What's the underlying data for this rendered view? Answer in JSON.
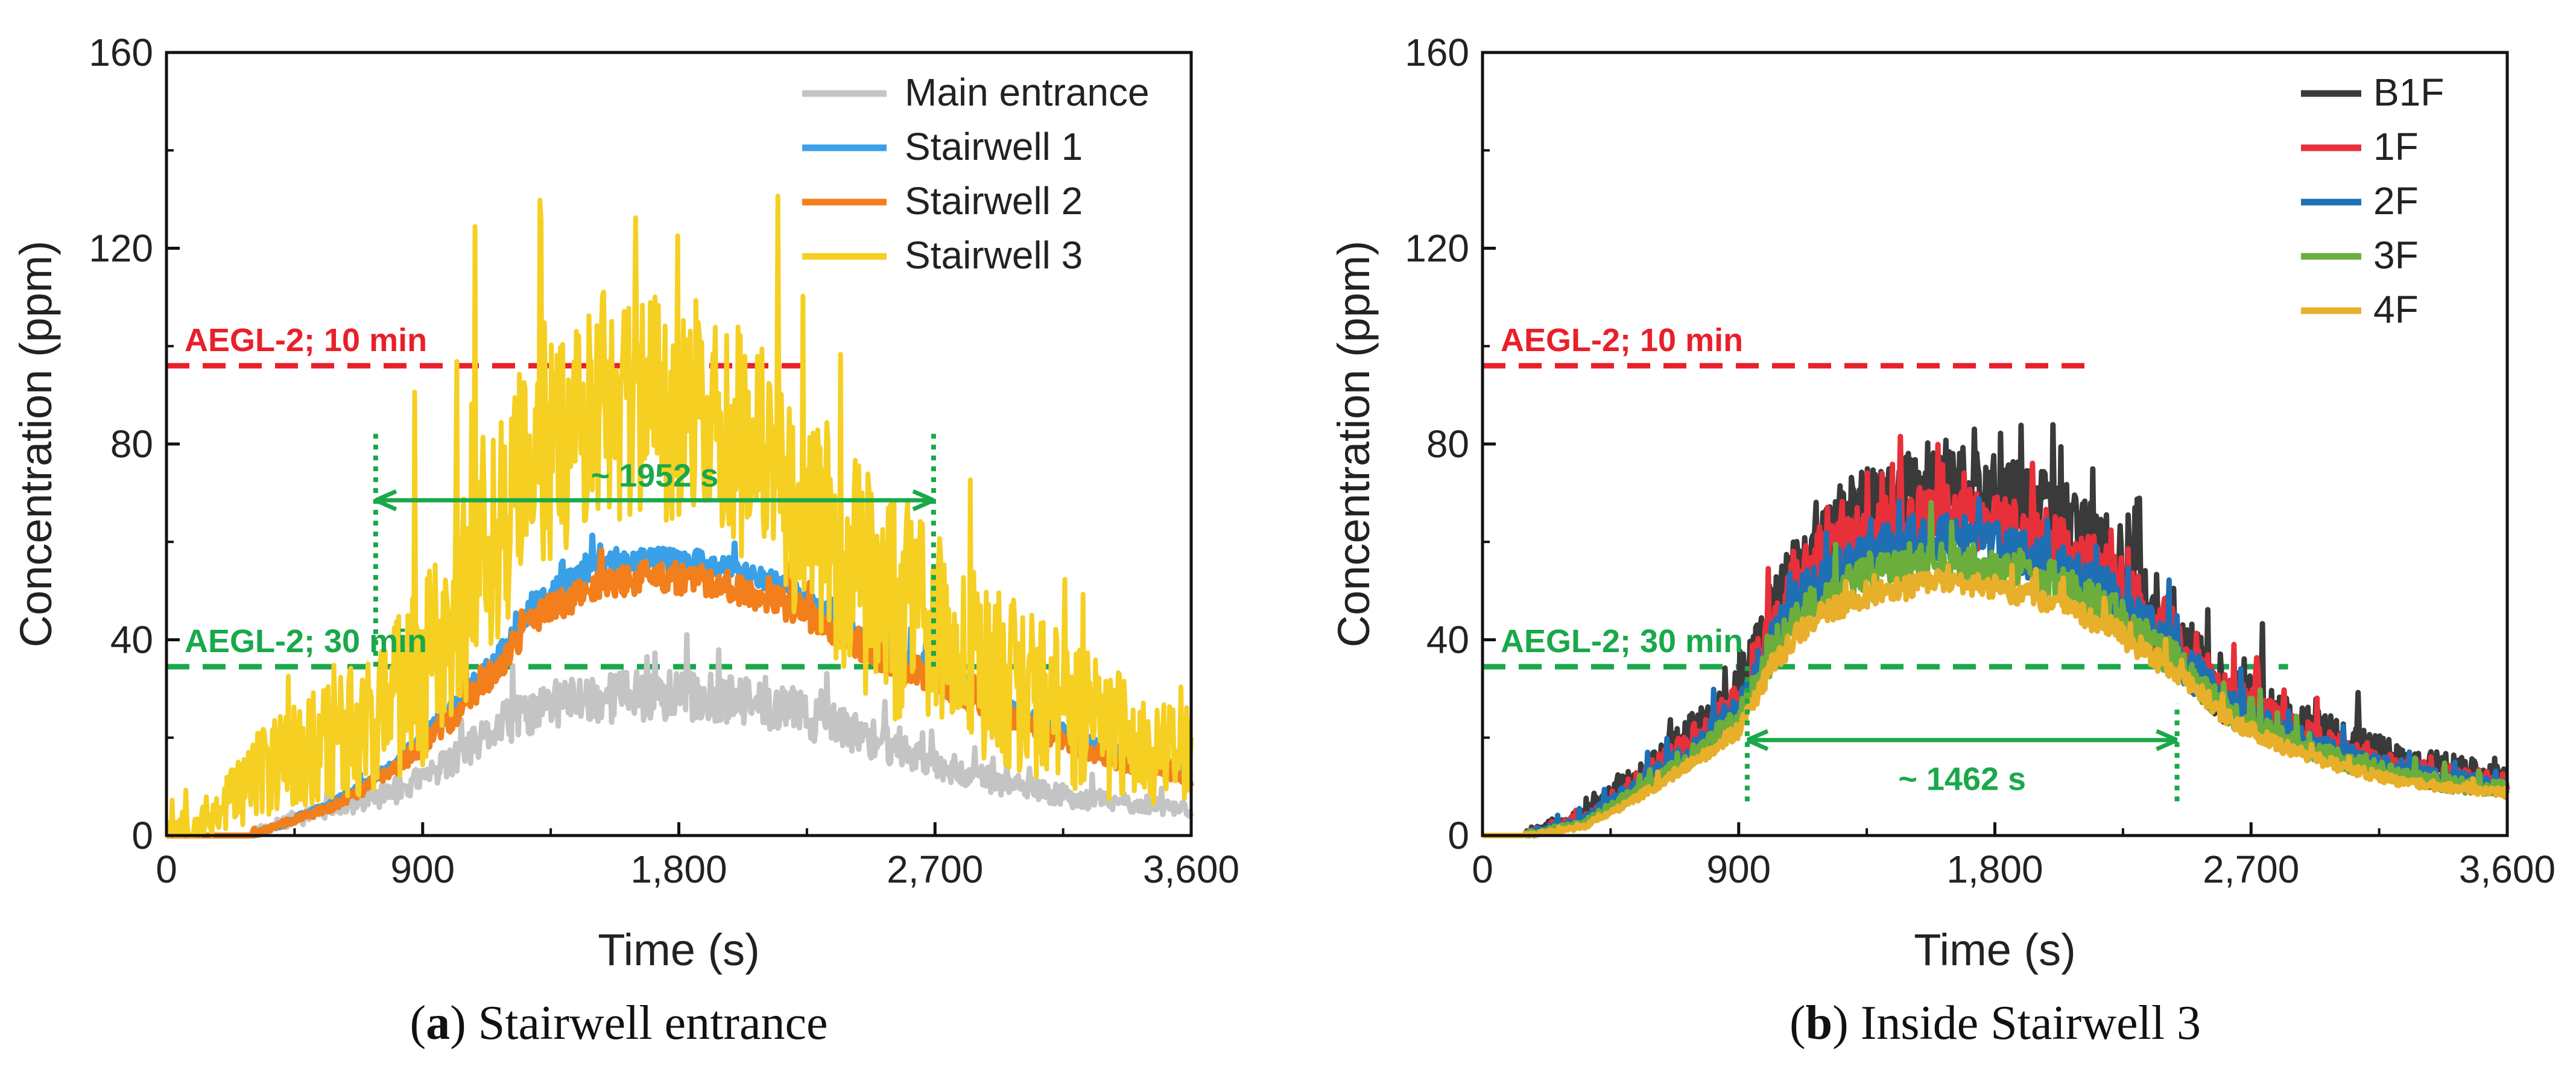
{
  "chart_data": [
    {
      "type": "line",
      "caption_prefix": "(",
      "caption_letter": "a",
      "caption_suffix": ") Stairwell entrance",
      "xlabel": "Time (s)",
      "ylabel": "Concentration (ppm)",
      "xlim": [
        0,
        3600
      ],
      "ylim": [
        0,
        160
      ],
      "xticks": [
        0,
        900,
        1800,
        2700,
        3600
      ],
      "xtick_labels": [
        "0",
        "900",
        "1,800",
        "2,700",
        "3,600"
      ],
      "yticks": [
        0,
        40,
        80,
        120,
        160
      ],
      "ytick_labels": [
        "0",
        "40",
        "80",
        "120",
        "160"
      ],
      "legend_position": "top-right",
      "series": [
        {
          "name": "Main entrance",
          "color": "#c4c4c4",
          "width": 9,
          "noise": 8,
          "seed": 11,
          "x": [
            0,
            300,
            400,
            600,
            800,
            1000,
            1200,
            1400,
            1600,
            1800,
            2000,
            2200,
            2400,
            2600,
            2800,
            3000,
            3200,
            3400,
            3600
          ],
          "values": [
            0,
            0,
            2,
            5,
            8,
            14,
            22,
            26,
            27,
            27,
            26,
            24,
            20,
            16,
            12,
            9,
            7,
            6,
            5
          ]
        },
        {
          "name": "Stairwell 1",
          "color": "#3aa0e8",
          "width": 10,
          "noise": 3,
          "seed": 23,
          "x": [
            0,
            300,
            400,
            600,
            800,
            1000,
            1200,
            1300,
            1500,
            1700,
            1900,
            2100,
            2300,
            2500,
            2700,
            2900,
            3100,
            3300,
            3600
          ],
          "values": [
            0,
            0,
            2,
            7,
            14,
            25,
            38,
            47,
            54,
            56,
            55,
            52,
            46,
            38,
            33,
            27,
            22,
            17,
            13
          ]
        },
        {
          "name": "Stairwell 2",
          "color": "#f27f1b",
          "width": 10,
          "noise": 4,
          "seed": 37,
          "x": [
            0,
            300,
            400,
            600,
            800,
            1000,
            1200,
            1300,
            1500,
            1700,
            1900,
            2100,
            2300,
            2500,
            2700,
            2900,
            3100,
            3300,
            3600
          ],
          "values": [
            0,
            0,
            2,
            6,
            13,
            23,
            36,
            44,
            50,
            52,
            51,
            48,
            43,
            36,
            31,
            25,
            20,
            15,
            11
          ]
        },
        {
          "name": "Stairwell 3",
          "color": "#f5cf22",
          "width": 8,
          "noise": 30,
          "seed": 53,
          "x": [
            0,
            150,
            250,
            400,
            600,
            800,
            1000,
            1100,
            1300,
            1500,
            1700,
            1900,
            2100,
            2300,
            2500,
            2700,
            2900,
            3100,
            3300,
            3600
          ],
          "values": [
            0,
            2,
            7,
            12,
            16,
            22,
            35,
            50,
            70,
            80,
            82,
            78,
            70,
            55,
            42,
            33,
            27,
            22,
            17,
            12
          ]
        }
      ],
      "hlines": [
        {
          "y": 96,
          "x_end": 2250,
          "color": "#e8202a",
          "label": "AEGL-2; 10 min"
        },
        {
          "y": 34.5,
          "x_end": 3130,
          "color": "#1aa84a",
          "label": "AEGL-2; 30 min"
        }
      ],
      "vlines": [
        {
          "x": 735,
          "y_bottom": 34.5,
          "y_top": 83
        },
        {
          "x": 2695,
          "y_bottom": 34.5,
          "y_top": 83
        }
      ],
      "interval": {
        "x_start": 735,
        "x_end": 2695,
        "y": 68.5,
        "label": "~ 1952 s",
        "label_y": 73.5
      }
    },
    {
      "type": "line",
      "caption_prefix": "(",
      "caption_letter": "b",
      "caption_suffix": ") Inside Stairwell 3",
      "xlabel": "Time (s)",
      "ylabel": "Concentration (ppm)",
      "xlim": [
        0,
        3600
      ],
      "ylim": [
        0,
        160
      ],
      "xticks": [
        0,
        900,
        1800,
        2700,
        3600
      ],
      "xtick_labels": [
        "0",
        "900",
        "1,800",
        "2,700",
        "3,600"
      ],
      "yticks": [
        0,
        40,
        80,
        120,
        160
      ],
      "ytick_labels": [
        "0",
        "40",
        "80",
        "120",
        "160"
      ],
      "legend_position": "top-right",
      "series": [
        {
          "name": "B1F",
          "color": "#3a3a3a",
          "width": 9,
          "noise": 10,
          "seed": 71,
          "x": [
            0,
            150,
            350,
            500,
            700,
            900,
            1000,
            1100,
            1200,
            1400,
            1600,
            1800,
            2000,
            2200,
            2400,
            2500,
            2600,
            2800,
            3000,
            3200,
            3400,
            3600
          ],
          "values": [
            0,
            0,
            3,
            9,
            17,
            26,
            40,
            52,
            60,
            66,
            70,
            68,
            64,
            56,
            43,
            34,
            28,
            22,
            18,
            14,
            12,
            10
          ]
        },
        {
          "name": "1F",
          "color": "#e8303a",
          "width": 9,
          "noise": 8,
          "seed": 83,
          "x": [
            0,
            150,
            350,
            500,
            700,
            900,
            1000,
            1100,
            1200,
            1400,
            1600,
            1800,
            2000,
            2200,
            2400,
            2500,
            2600,
            2800,
            3000,
            3200,
            3400,
            3600
          ],
          "values": [
            0,
            0,
            3,
            8,
            16,
            25,
            38,
            49,
            56,
            61,
            64,
            62,
            58,
            51,
            40,
            33,
            27,
            21,
            17,
            13,
            11,
            9.5
          ]
        },
        {
          "name": "2F",
          "color": "#1f6fb5",
          "width": 9,
          "noise": 6,
          "seed": 97,
          "x": [
            0,
            150,
            350,
            500,
            700,
            900,
            1000,
            1100,
            1200,
            1400,
            1600,
            1800,
            2000,
            2200,
            2400,
            2500,
            2600,
            2800,
            3000,
            3200,
            3400,
            3600
          ],
          "values": [
            0,
            0,
            2.5,
            8,
            15,
            24,
            36,
            46,
            52,
            57,
            60,
            58,
            54,
            48,
            38,
            32,
            26,
            20,
            16,
            13,
            11,
            9
          ]
        },
        {
          "name": "3F",
          "color": "#6cae3c",
          "width": 9,
          "noise": 5,
          "seed": 109,
          "x": [
            0,
            150,
            350,
            500,
            700,
            900,
            1000,
            1100,
            1200,
            1400,
            1600,
            1800,
            2000,
            2200,
            2400,
            2500,
            2600,
            2800,
            3000,
            3200,
            3400,
            3600
          ],
          "values": [
            0,
            0,
            2,
            7,
            14,
            23,
            34,
            43,
            48,
            53,
            56,
            54,
            51,
            45,
            36,
            31,
            25,
            19,
            15,
            12,
            10,
            9
          ]
        },
        {
          "name": "4F",
          "color": "#e8b02a",
          "width": 9,
          "noise": 3,
          "seed": 127,
          "x": [
            0,
            150,
            350,
            500,
            700,
            900,
            1000,
            1100,
            1200,
            1400,
            1600,
            1800,
            2000,
            2200,
            2400,
            2500,
            2600,
            2800,
            3000,
            3200,
            3400,
            3600
          ],
          "values": [
            0,
            0,
            1.5,
            6,
            13,
            21,
            32,
            40,
            45,
            49,
            51,
            50,
            47,
            42,
            34,
            30,
            24,
            18,
            14,
            11,
            9.5,
            8.5
          ]
        }
      ],
      "hlines": [
        {
          "y": 96,
          "x_end": 2120,
          "color": "#e8202a",
          "label": "AEGL-2; 10 min"
        },
        {
          "y": 34.5,
          "x_end": 2830,
          "color": "#1aa84a",
          "label": "AEGL-2; 30 min"
        }
      ],
      "vlines": [
        {
          "x": 930,
          "y_bottom": 7,
          "y_top": 35
        },
        {
          "x": 2440,
          "y_bottom": 7,
          "y_top": 27
        }
      ],
      "interval": {
        "x_start": 930,
        "x_end": 2440,
        "y": 19.5,
        "label": "~ 1462 s",
        "label_y": 11.5
      }
    }
  ]
}
